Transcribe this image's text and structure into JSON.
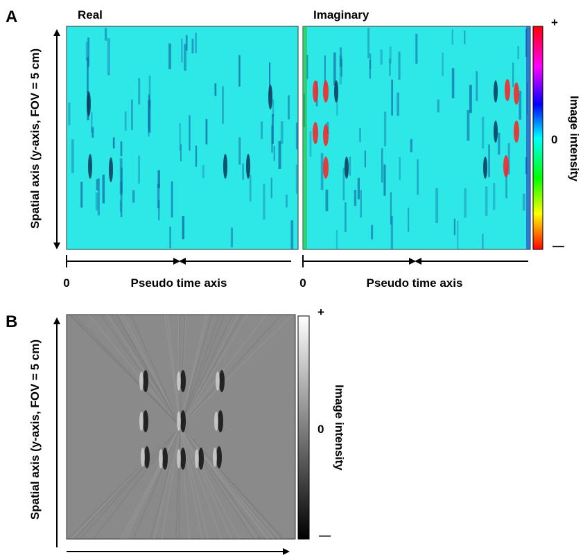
{
  "panel_a": {
    "label": "A",
    "real_title": "Real",
    "imaginary_title": "Imaginary",
    "y_axis_label": "Spatial axis (y-axis, FOV = 5 cm)",
    "colorbar": {
      "top": "+",
      "middle": "0",
      "bottom": "—",
      "label": "Image intensity"
    },
    "time_axis_start": "0",
    "time_axis_label": "Pseudo time axis"
  },
  "panel_b": {
    "label": "B",
    "y_axis_label": "Spatial axis (y-axis, FOV = 5 cm)",
    "colorbar": {
      "top": "+",
      "middle": "0",
      "bottom": "—",
      "label": "Image intensity"
    }
  }
}
